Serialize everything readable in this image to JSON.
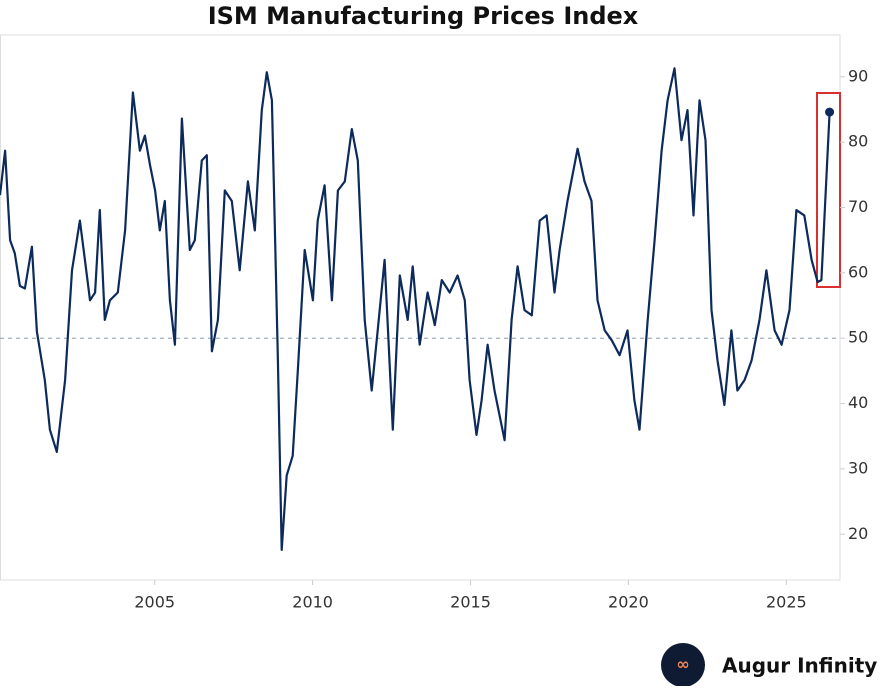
{
  "chart_data": {
    "type": "line",
    "title": "ISM Manufacturing Prices Index",
    "x": [
      2000.1,
      2000.26,
      2000.42,
      2000.57,
      2000.73,
      2000.89,
      2001.11,
      2001.27,
      2001.52,
      2001.68,
      2001.9,
      2002.16,
      2002.38,
      2002.63,
      2002.79,
      2002.95,
      2003.11,
      2003.26,
      2003.42,
      2003.58,
      2003.83,
      2004.06,
      2004.31,
      2004.53,
      2004.69,
      2004.85,
      2005.01,
      2005.16,
      2005.32,
      2005.48,
      2005.64,
      2005.86,
      2006.11,
      2006.27,
      2006.49,
      2006.65,
      2006.81,
      2007.0,
      2007.22,
      2007.44,
      2007.69,
      2007.95,
      2008.17,
      2008.39,
      2008.55,
      2008.71,
      2008.9,
      2009.02,
      2009.18,
      2009.37,
      2009.53,
      2009.75,
      2010.01,
      2010.16,
      2010.38,
      2010.61,
      2010.8,
      2011.02,
      2011.24,
      2011.43,
      2011.65,
      2011.87,
      2012.06,
      2012.28,
      2012.54,
      2012.76,
      2013.01,
      2013.17,
      2013.39,
      2013.64,
      2013.87,
      2014.09,
      2014.34,
      2014.59,
      2014.82,
      2014.97,
      2015.19,
      2015.35,
      2015.54,
      2015.76,
      2016.08,
      2016.3,
      2016.49,
      2016.71,
      2016.94,
      2017.19,
      2017.41,
      2017.66,
      2017.82,
      2018.07,
      2018.39,
      2018.61,
      2018.83,
      2019.02,
      2019.25,
      2019.47,
      2019.72,
      2019.97,
      2020.19,
      2020.35,
      2020.61,
      2020.83,
      2021.05,
      2021.24,
      2021.46,
      2021.68,
      2021.87,
      2022.06,
      2022.25,
      2022.44,
      2022.63,
      2022.82,
      2023.04,
      2023.26,
      2023.45,
      2023.68,
      2023.9,
      2024.15,
      2024.37,
      2024.63,
      2024.85,
      2025.1,
      2025.32,
      2025.57,
      2025.8,
      2025.99,
      2026.11,
      2026.37
    ],
    "series": [
      {
        "color": "#0d2a5c",
        "values": [
          71.9,
          78.7,
          65,
          63,
          58,
          57.6,
          64,
          51,
          43.6,
          36,
          32.6,
          43.6,
          60.4,
          68,
          62,
          55.8,
          57,
          69.6,
          52.8,
          55.8,
          57,
          66.5,
          87.6,
          78.7,
          81,
          76.5,
          72.6,
          66.5,
          71,
          55.8,
          49,
          83.6,
          63.5,
          65,
          77.2,
          78,
          48,
          52.8,
          72.6,
          71,
          60.4,
          74,
          66.5,
          84.9,
          90.7,
          86.4,
          46.6,
          17.6,
          29,
          32,
          45,
          63.5,
          55.8,
          68,
          73.4,
          55.8,
          72.6,
          74,
          82,
          77.2,
          52.8,
          42,
          51.2,
          62,
          36,
          59.6,
          52.8,
          61,
          49,
          57,
          52,
          58.9,
          57,
          59.6,
          55.8,
          43.6,
          35.2,
          40.5,
          49,
          42,
          34.4,
          52.8,
          61,
          54.3,
          53.5,
          68,
          68.8,
          57,
          63.5,
          71,
          79,
          74,
          71,
          55.8,
          51.2,
          49.7,
          47.4,
          51.2,
          40.5,
          36,
          52.8,
          65,
          78.7,
          86.4,
          91.3,
          80.3,
          84.9,
          68.8,
          86.4,
          80.3,
          54.3,
          46.6,
          39.8,
          51.2,
          42,
          43.6,
          46.6,
          52.8,
          60.4,
          51.2,
          49,
          54.3,
          69.6,
          68.8,
          62,
          58.6,
          58.9,
          84.6
        ]
      }
    ],
    "xlim": [
      2000.1,
      2026.7
    ],
    "xticks": [
      2005,
      2010,
      2015,
      2020,
      2025
    ],
    "ylim": [
      13,
      96.4
    ],
    "yticks": [
      20,
      30,
      40,
      50,
      60,
      70,
      80,
      90
    ],
    "reference_line": 50,
    "source": "Augur Infinity"
  }
}
